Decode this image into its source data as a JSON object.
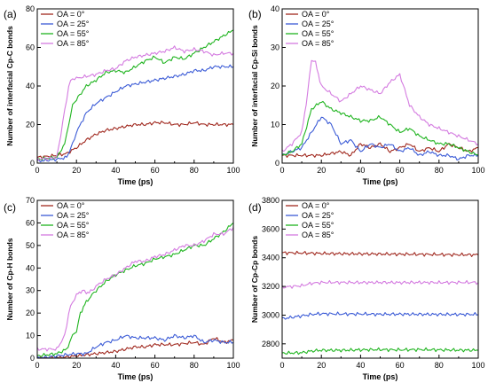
{
  "chart_data": [
    {
      "type": "line",
      "panel_label": "(a)",
      "xlabel": "Time (ps)",
      "ylabel": "Number of interfacial Cp-C bonds",
      "xlim": [
        0,
        100
      ],
      "ylim": [
        0,
        80
      ],
      "xticks": [
        "0",
        "20",
        "40",
        "60",
        "80",
        "100"
      ],
      "yticks": [
        "0",
        "20",
        "40",
        "60",
        "80"
      ],
      "legend_position": "top-left",
      "series": [
        {
          "name": "OA = 0°",
          "color": "#a0281e",
          "x": [
            0,
            10,
            15,
            20,
            25,
            30,
            35,
            40,
            45,
            50,
            55,
            60,
            65,
            70,
            75,
            80,
            85,
            90,
            95,
            100
          ],
          "y": [
            3,
            4,
            5,
            8,
            12,
            15,
            17,
            18,
            19,
            20,
            20,
            21,
            21,
            20,
            20,
            21,
            20,
            20,
            20,
            20
          ]
        },
        {
          "name": "OA = 25°",
          "color": "#3b5bd6",
          "x": [
            0,
            10,
            15,
            18,
            20,
            25,
            30,
            35,
            40,
            45,
            50,
            55,
            60,
            65,
            70,
            75,
            80,
            85,
            90,
            95,
            100
          ],
          "y": [
            1,
            2,
            3,
            10,
            16,
            26,
            31,
            34,
            37,
            40,
            41,
            42,
            43,
            44,
            45,
            46,
            48,
            48,
            50,
            50,
            50
          ]
        },
        {
          "name": "OA = 55°",
          "color": "#1fb41f",
          "x": [
            0,
            10,
            14,
            16,
            18,
            20,
            25,
            30,
            35,
            40,
            45,
            50,
            55,
            60,
            65,
            70,
            75,
            80,
            85,
            90,
            95,
            100
          ],
          "y": [
            2,
            3,
            10,
            20,
            30,
            33,
            40,
            43,
            47,
            48,
            47,
            50,
            53,
            55,
            52,
            55,
            54,
            57,
            60,
            63,
            66,
            69
          ]
        },
        {
          "name": "OA = 85°",
          "color": "#d47be0",
          "x": [
            0,
            10,
            12,
            14,
            16,
            18,
            20,
            25,
            30,
            35,
            40,
            45,
            50,
            55,
            60,
            65,
            70,
            75,
            80,
            85,
            90,
            95,
            100
          ],
          "y": [
            2,
            3,
            15,
            27,
            40,
            44,
            44,
            45,
            46,
            48,
            49,
            53,
            55,
            56,
            57,
            58,
            60,
            58,
            59,
            58,
            56,
            57,
            57
          ]
        }
      ]
    },
    {
      "type": "line",
      "panel_label": "(b)",
      "xlabel": "Time (ps)",
      "ylabel": "Number of interfacial Cp-Si bonds",
      "xlim": [
        0,
        100
      ],
      "ylim": [
        0,
        40
      ],
      "xticks": [
        "0",
        "20",
        "40",
        "60",
        "80",
        "100"
      ],
      "yticks": [
        "0",
        "10",
        "20",
        "30",
        "40"
      ],
      "legend_position": "top-left",
      "series": [
        {
          "name": "OA = 0°",
          "color": "#a0281e",
          "x": [
            0,
            10,
            20,
            30,
            35,
            40,
            45,
            50,
            55,
            60,
            65,
            70,
            75,
            80,
            85,
            90,
            95,
            100
          ],
          "y": [
            2,
            2,
            2,
            3,
            2,
            5,
            4,
            5,
            3,
            4,
            5,
            3,
            4,
            3,
            5,
            4,
            3,
            4
          ]
        },
        {
          "name": "OA = 25°",
          "color": "#3b5bd6",
          "x": [
            0,
            5,
            10,
            15,
            20,
            25,
            30,
            35,
            40,
            45,
            50,
            55,
            60,
            65,
            70,
            75,
            80,
            85,
            90,
            95,
            100
          ],
          "y": [
            2,
            3,
            4,
            8,
            12,
            10,
            5,
            6,
            3,
            5,
            4,
            5,
            3,
            4,
            2,
            3,
            2,
            2,
            1,
            2,
            2
          ]
        },
        {
          "name": "OA = 55°",
          "color": "#1fb41f",
          "x": [
            0,
            5,
            10,
            15,
            20,
            25,
            30,
            35,
            40,
            45,
            50,
            55,
            60,
            65,
            70,
            75,
            80,
            85,
            90,
            95,
            100
          ],
          "y": [
            2,
            3,
            5,
            14,
            16,
            14,
            13,
            12,
            11,
            11,
            12,
            10,
            8,
            9,
            7,
            6,
            5,
            5,
            4,
            3,
            2
          ]
        },
        {
          "name": "OA = 85°",
          "color": "#d47be0",
          "x": [
            0,
            5,
            10,
            13,
            15,
            17,
            20,
            25,
            30,
            35,
            40,
            45,
            50,
            55,
            60,
            65,
            70,
            75,
            80,
            85,
            90,
            95,
            100
          ],
          "y": [
            3,
            5,
            8,
            18,
            27,
            26,
            20,
            18,
            16,
            18,
            20,
            19,
            18,
            21,
            23,
            15,
            12,
            10,
            9,
            8,
            7,
            6,
            5
          ]
        }
      ]
    },
    {
      "type": "line",
      "panel_label": "(c)",
      "xlabel": "Time (ps)",
      "ylabel": "Number of Cp-H bonds",
      "xlim": [
        0,
        100
      ],
      "ylim": [
        0,
        70
      ],
      "xticks": [
        "0",
        "20",
        "40",
        "60",
        "80",
        "100"
      ],
      "yticks": [
        "0",
        "10",
        "20",
        "30",
        "40",
        "50",
        "60",
        "70"
      ],
      "legend_position": "top-left",
      "series": [
        {
          "name": "OA = 0°",
          "color": "#a0281e",
          "x": [
            0,
            10,
            20,
            30,
            40,
            45,
            50,
            55,
            60,
            70,
            80,
            85,
            90,
            95,
            100
          ],
          "y": [
            0,
            0,
            1,
            2,
            3,
            4,
            5,
            5,
            6,
            6,
            7,
            6,
            9,
            7,
            8
          ]
        },
        {
          "name": "OA = 25°",
          "color": "#3b5bd6",
          "x": [
            0,
            10,
            20,
            25,
            30,
            35,
            40,
            45,
            50,
            55,
            60,
            65,
            70,
            75,
            80,
            85,
            90,
            95,
            100
          ],
          "y": [
            0,
            1,
            2,
            2,
            5,
            7,
            8,
            10,
            9,
            9,
            9,
            8,
            10,
            9,
            10,
            7,
            8,
            7,
            7
          ]
        },
        {
          "name": "OA = 55°",
          "color": "#1fb41f",
          "x": [
            0,
            10,
            15,
            18,
            20,
            22,
            25,
            28,
            30,
            35,
            40,
            45,
            50,
            55,
            60,
            65,
            70,
            75,
            80,
            85,
            90,
            95,
            100
          ],
          "y": [
            1,
            2,
            4,
            10,
            12,
            20,
            25,
            28,
            30,
            34,
            37,
            39,
            41,
            42,
            44,
            45,
            46,
            48,
            50,
            50,
            53,
            56,
            60
          ]
        },
        {
          "name": "OA = 85°",
          "color": "#d47be0",
          "x": [
            0,
            10,
            14,
            16,
            18,
            20,
            23,
            25,
            28,
            30,
            35,
            40,
            45,
            50,
            55,
            60,
            65,
            70,
            75,
            80,
            85,
            90,
            95,
            100
          ],
          "y": [
            4,
            4,
            10,
            20,
            25,
            28,
            30,
            29,
            30,
            32,
            35,
            37,
            40,
            43,
            43,
            45,
            46,
            48,
            50,
            50,
            52,
            55,
            55,
            58
          ]
        }
      ]
    },
    {
      "type": "line",
      "panel_label": "(d)",
      "xlabel": "Time (ps)",
      "ylabel": "Number of Cp-Cp bonds",
      "xlim": [
        0,
        100
      ],
      "ylim": [
        2700,
        3800
      ],
      "xticks": [
        "0",
        "20",
        "40",
        "60",
        "80",
        "100"
      ],
      "yticks": [
        "2800",
        "3000",
        "3200",
        "3400",
        "3600",
        "3800"
      ],
      "legend_position": "top-left",
      "series": [
        {
          "name": "OA = 0°",
          "color": "#a0281e",
          "x": [
            0,
            10,
            20,
            30,
            40,
            50,
            60,
            70,
            80,
            90,
            100
          ],
          "y": [
            3435,
            3433,
            3430,
            3428,
            3427,
            3426,
            3425,
            3424,
            3422,
            3421,
            3420
          ]
        },
        {
          "name": "OA = 25°",
          "color": "#3b5bd6",
          "x": [
            0,
            5,
            10,
            15,
            20,
            30,
            40,
            50,
            60,
            70,
            80,
            90,
            100
          ],
          "y": [
            2975,
            2985,
            2995,
            3005,
            3010,
            3008,
            3008,
            3006,
            3007,
            3006,
            3005,
            3005,
            3005
          ]
        },
        {
          "name": "OA = 55°",
          "color": "#1fb41f",
          "x": [
            0,
            10,
            15,
            20,
            30,
            40,
            50,
            60,
            70,
            80,
            90,
            100
          ],
          "y": [
            2735,
            2738,
            2750,
            2755,
            2755,
            2758,
            2760,
            2758,
            2760,
            2758,
            2756,
            2755
          ]
        },
        {
          "name": "OA = 85°",
          "color": "#d47be0",
          "x": [
            0,
            5,
            10,
            15,
            20,
            30,
            40,
            50,
            60,
            70,
            80,
            90,
            100
          ],
          "y": [
            3195,
            3200,
            3205,
            3222,
            3228,
            3228,
            3227,
            3228,
            3227,
            3228,
            3227,
            3228,
            3228
          ]
        }
      ]
    }
  ]
}
